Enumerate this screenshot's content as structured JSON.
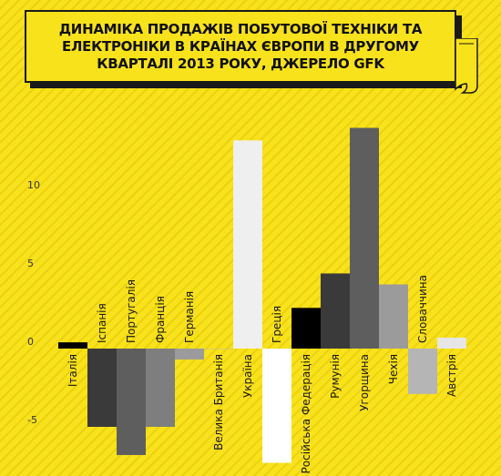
{
  "chart_data": {
    "type": "bar",
    "title": "ДИНАМІКА ПРОДАЖІВ ПОБУТОВОЇ ТЕХНІКИ ТА ЕЛЕКТРОНІКИ В КРАЇНАХ ЄВРОПИ В ДРУГОМУ КВАРТАЛІ 2013 РОКУ, ДЖЕРЕЛО GFK",
    "categories": [
      "Італія",
      "Іспанія",
      "Португалія",
      "Франція",
      "Германія",
      "Велика Британія",
      "Україна",
      "Греція",
      "Російська Федерація",
      "Румунія",
      "Угорщина",
      "Чехія",
      "Словаччина",
      "Австрія"
    ],
    "values": [
      0.4,
      -5.0,
      -6.8,
      -5.0,
      -0.7,
      0.0,
      13.3,
      -7.3,
      2.6,
      4.8,
      14.1,
      4.1,
      -2.9,
      0.7
    ],
    "colors": [
      "#000000",
      "#3a3a3a",
      "#5e5e5e",
      "#7e7e7e",
      "#9b9b9b",
      "#bdbdbd",
      "#efefef",
      "#ffffff",
      "#000000",
      "#3a3a3a",
      "#5e5e5e",
      "#9b9b9b",
      "#b5b5b5",
      "#e6e6e6"
    ],
    "yticks": [
      -5,
      0,
      5,
      10
    ],
    "ylim": [
      -7.5,
      15
    ],
    "xlabel": "",
    "ylabel": "",
    "grid": false
  }
}
